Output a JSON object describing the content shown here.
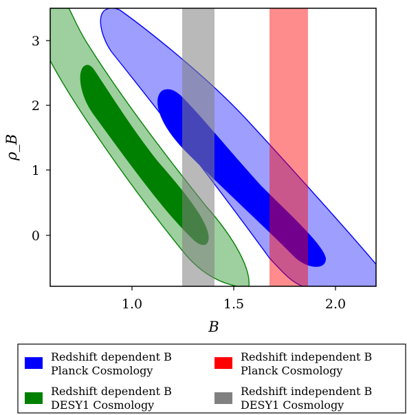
{
  "chart_data": {
    "type": "contour",
    "xlabel": "B",
    "ylabel": "ρ_B",
    "xlim": [
      0.6,
      2.2
    ],
    "ylim": [
      -0.78,
      3.5
    ],
    "x_ticks": [
      "1.0",
      "1.5",
      "2.0"
    ],
    "y_ticks": [
      "0",
      "1",
      "2",
      "3"
    ],
    "grid": false,
    "legend_position": "below",
    "series": [
      {
        "name": "Redshift dependent B Planck Cosmology",
        "legend_line1": "Redshift dependent B",
        "legend_line2": "Planck Cosmology",
        "kind": "confidence-ellipse",
        "color": "#0000ff",
        "center": [
          1.53,
          0.9
        ],
        "inner_68": [
          [
            1.14,
            2.2
          ],
          [
            1.12,
            1.75
          ],
          [
            1.7,
            0.35
          ],
          [
            1.85,
            -0.4
          ],
          [
            1.93,
            -0.35
          ],
          [
            1.86,
            0.1
          ],
          [
            1.3,
            1.65
          ]
        ],
        "outer_95": [
          [
            0.84,
            3.5
          ],
          [
            0.9,
            3.0
          ],
          [
            1.5,
            1.2
          ],
          [
            1.8,
            -0.78
          ],
          [
            2.2,
            -0.78
          ],
          [
            2.2,
            -0.45
          ],
          [
            1.6,
            0.9
          ],
          [
            1.0,
            3.5
          ]
        ]
      },
      {
        "name": "Redshift dependent B DESY1 Cosmology",
        "legend_line1": "Redshift dependent B",
        "legend_line2": "DESY1 Cosmology",
        "kind": "confidence-ellipse",
        "color": "#008000",
        "center": [
          1.05,
          1.1
        ],
        "inner_68": [
          [
            0.75,
            2.55
          ],
          [
            0.78,
            1.9
          ],
          [
            1.3,
            -0.12
          ],
          [
            1.37,
            -0.12
          ],
          [
            1.33,
            0.35
          ],
          [
            0.87,
            2.35
          ]
        ],
        "outer_95": [
          [
            0.6,
            3.5
          ],
          [
            0.6,
            3.05
          ],
          [
            1.5,
            -0.78
          ],
          [
            1.58,
            -0.78
          ],
          [
            1.52,
            -0.2
          ],
          [
            0.85,
            3.5
          ]
        ]
      },
      {
        "name": "Redshift independent B Planck Cosmology",
        "legend_line1": "Redshift independent B",
        "legend_line2": "Planck Cosmology",
        "kind": "vertical-band",
        "color": "#ff0000",
        "x_range": [
          1.68,
          1.86
        ]
      },
      {
        "name": "Redshift independent B DESY1 Cosmology",
        "legend_line1": "Redshift independent B",
        "legend_line2": "DESY1 Cosmology",
        "kind": "vertical-band",
        "color": "#808080",
        "x_range": [
          1.25,
          1.4
        ]
      }
    ]
  }
}
